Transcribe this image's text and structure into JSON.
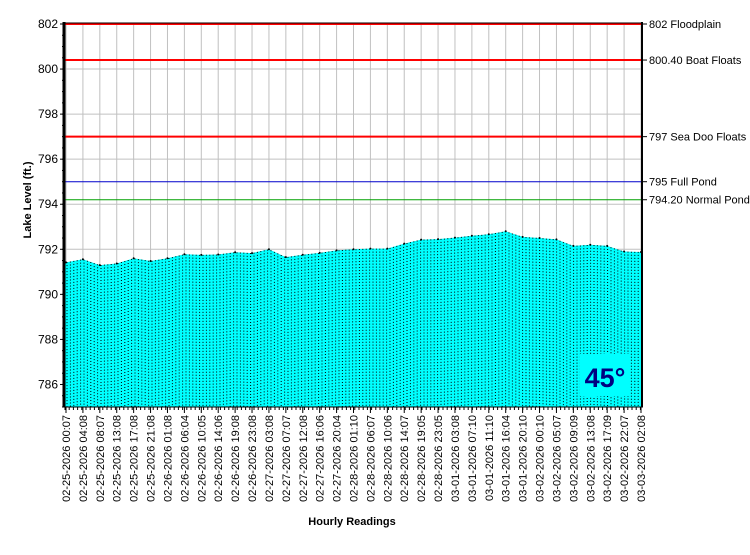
{
  "chart_data": {
    "type": "area",
    "title": "",
    "xlabel": "Hourly Readings",
    "ylabel": "Lake Level (ft.)",
    "ylim": [
      785,
      802
    ],
    "yticks": [
      786,
      788,
      790,
      792,
      794,
      796,
      798,
      800,
      802
    ],
    "grid": true,
    "x": [
      "02-25-2026 00:07",
      "02-25-2026 04:08",
      "02-25-2026 08:07",
      "02-25-2026 13:08",
      "02-25-2026 17:08",
      "02-25-2026 21:08",
      "02-26-2026 01:08",
      "02-26-2026 06:04",
      "02-26-2026 10:05",
      "02-26-2026 14:06",
      "02-26-2026 19:08",
      "02-26-2026 23:08",
      "02-27-2026 03:08",
      "02-27-2026 07:07",
      "02-27-2026 12:08",
      "02-27-2026 16:06",
      "02-27-2026 20:04",
      "02-28-2026 01:10",
      "02-28-2026 06:07",
      "02-28-2026 10:06",
      "02-28-2026 14:07",
      "02-28-2026 19:05",
      "02-28-2026 23:05",
      "03-01-2026 03:08",
      "03-01-2026 07:10",
      "03-01-2026 11:10",
      "03-01-2026 16:04",
      "03-01-2026 20:10",
      "03-02-2026 00:10",
      "03-02-2026 05:07",
      "03-02-2026 09:09",
      "03-02-2026 13:08",
      "03-02-2026 17:09",
      "03-02-2026 22:07",
      "03-03-2026 02:08"
    ],
    "values": [
      791.42,
      791.56,
      791.3,
      791.37,
      791.6,
      791.48,
      791.6,
      791.78,
      791.75,
      791.77,
      791.87,
      791.83,
      792.0,
      791.65,
      791.76,
      791.84,
      791.95,
      792.0,
      792.03,
      792.03,
      792.25,
      792.43,
      792.45,
      792.52,
      792.6,
      792.67,
      792.8,
      792.55,
      792.5,
      792.44,
      792.15,
      792.2,
      792.15,
      791.9,
      791.88
    ],
    "series_color": "#00FFFF",
    "reference_lines": [
      {
        "value": 802,
        "label": "802 Floodplain",
        "color": "#FF0000"
      },
      {
        "value": 800.4,
        "label": "800.40 Boat Floats",
        "color": "#FF0000"
      },
      {
        "value": 797,
        "label": "797 Sea Doo Floats",
        "color": "#FF0000"
      },
      {
        "value": 795,
        "label": "795 Full Pond",
        "color": "#0000CC"
      },
      {
        "value": 794.2,
        "label": "794.20 Normal Pond",
        "color": "#00A000"
      }
    ],
    "annotation": {
      "text": "45°",
      "color": "#000080",
      "background": "#00FFFF"
    }
  }
}
